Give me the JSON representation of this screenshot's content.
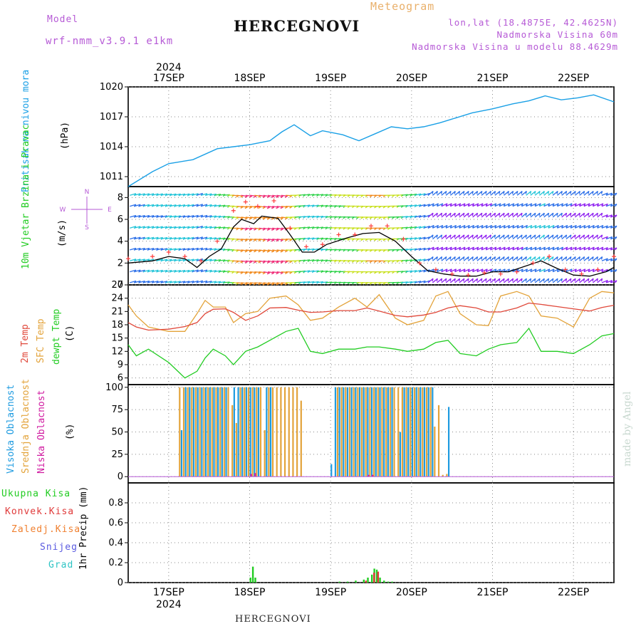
{
  "header": {
    "model_label": "Model",
    "model_name": "wrf-nmm_v3.9.1 e1km",
    "meteogram_label": "Meteogram",
    "station": "HERCEGNOVI",
    "lonlat": "lon,lat (18.4875E, 42.4625N)",
    "elevation": "Nadmorska Visina 60m",
    "model_elevation": "Nadmorska Visina u modelu 88.4629m",
    "footer_station": "HERCEGNOVI",
    "credit": "made by Angel"
  },
  "colors": {
    "pressure": "#1aa0e6",
    "wind_speed": "#000000",
    "gust": "#ff3b3b",
    "temp2m": "#e0483a",
    "sfc_temp": "#e3a33a",
    "dewpt": "#22cc22",
    "high_cloud": "#1e9be0",
    "mid_cloud": "#e3a33a",
    "low_cloud": "#d01aa0",
    "total_precip": "#22cc22",
    "conv_precip": "#e03a3a",
    "frozen_precip": "#f08030",
    "snow": "#5a5ae0",
    "hail": "#2ec4c4"
  },
  "time_axis": {
    "year_label": "2024",
    "day_labels": [
      "17SEP",
      "18SEP",
      "19SEP",
      "20SEP",
      "21SEP",
      "22SEP"
    ]
  },
  "chart_data": [
    {
      "type": "line",
      "panel": "pressure",
      "ylabel": "Pritisak na nivou mora",
      "unit_label": "(hPa)",
      "ylim": [
        1010,
        1020
      ],
      "yticks": [
        "1011",
        "1014",
        "1017",
        "1020"
      ],
      "x_days": [
        16.5,
        16.8,
        17.0,
        17.3,
        17.6,
        17.8,
        18.0,
        18.25,
        18.4,
        18.55,
        18.75,
        18.9,
        19.15,
        19.35,
        19.55,
        19.75,
        19.95,
        20.15,
        20.35,
        20.55,
        20.75,
        21.0,
        21.25,
        21.45,
        21.65,
        21.85,
        22.05,
        22.25,
        22.5
      ],
      "values": [
        1010.0,
        1011.5,
        1012.3,
        1012.7,
        1013.8,
        1014.0,
        1014.2,
        1014.6,
        1015.5,
        1016.2,
        1015.1,
        1015.6,
        1015.2,
        1014.6,
        1015.3,
        1016.0,
        1015.8,
        1016.0,
        1016.4,
        1016.9,
        1017.4,
        1017.8,
        1018.3,
        1018.6,
        1019.1,
        1018.7,
        1018.9,
        1019.2,
        1018.5
      ],
      "grid": true
    },
    {
      "type": "line",
      "panel": "wind",
      "ylabel": "10m Vjetar Brzina i Pravac",
      "unit_label": "(m/s)",
      "ylim": [
        0,
        9
      ],
      "yticks": [
        "0",
        "2",
        "4",
        "6",
        "8"
      ],
      "compass": [
        "N",
        "W",
        "E",
        "S"
      ],
      "series": [
        {
          "role": "wind_speed",
          "x": [
            16.5,
            16.8,
            17.0,
            17.2,
            17.35,
            17.5,
            17.65,
            17.8,
            17.9,
            18.05,
            18.15,
            18.35,
            18.5,
            18.65,
            18.8,
            18.95,
            19.2,
            19.4,
            19.6,
            19.8,
            20.0,
            20.2,
            20.4,
            20.6,
            20.8,
            21.0,
            21.2,
            21.4,
            21.6,
            21.8,
            22.0,
            22.2,
            22.4,
            22.5
          ],
          "values": [
            2.0,
            2.2,
            2.6,
            2.4,
            1.6,
            2.6,
            3.3,
            5.3,
            6.0,
            5.6,
            6.3,
            6.1,
            4.6,
            3.0,
            3.0,
            3.7,
            4.3,
            4.7,
            4.8,
            4.0,
            2.6,
            1.3,
            1.0,
            0.8,
            0.8,
            1.2,
            1.2,
            1.7,
            2.2,
            1.5,
            0.9,
            0.8,
            1.2,
            1.6
          ]
        },
        {
          "role": "gust",
          "x": [
            16.5,
            16.8,
            17.0,
            17.2,
            17.4,
            17.6,
            17.8,
            17.95,
            18.1,
            18.3,
            18.5,
            18.7,
            18.9,
            19.1,
            19.3,
            19.5,
            19.7,
            19.9,
            20.1,
            20.3,
            20.5,
            20.7,
            20.9,
            21.1,
            21.3,
            21.5,
            21.7,
            21.9,
            22.1,
            22.3,
            22.5
          ],
          "values": [
            2.4,
            2.6,
            3.0,
            2.6,
            2.2,
            4.0,
            6.8,
            7.6,
            7.2,
            7.7,
            5.2,
            3.5,
            3.7,
            4.6,
            4.6,
            5.4,
            5.4,
            4.2,
            2.0,
            1.4,
            1.0,
            0.9,
            1.1,
            1.0,
            1.2,
            2.0,
            2.6,
            1.4,
            1.0,
            1.4,
            2.6
          ]
        }
      ],
      "grid": true
    },
    {
      "type": "line",
      "panel": "temperature",
      "ylabel_parts": [
        "2m Temp",
        "SFC Temp",
        "dewpt Temp"
      ],
      "unit_label": "(C)",
      "ylim": [
        4.5,
        27
      ],
      "yticks": [
        "6",
        "9",
        "12",
        "15",
        "18",
        "21",
        "24",
        "27"
      ],
      "x_days": [
        16.5,
        16.6,
        16.75,
        17.0,
        17.2,
        17.35,
        17.45,
        17.55,
        17.7,
        17.8,
        17.95,
        18.1,
        18.25,
        18.45,
        18.6,
        18.75,
        18.9,
        19.1,
        19.3,
        19.45,
        19.6,
        19.8,
        19.95,
        20.15,
        20.3,
        20.45,
        20.6,
        20.8,
        20.95,
        21.1,
        21.3,
        21.45,
        21.6,
        21.8,
        22.0,
        22.2,
        22.35,
        22.5
      ],
      "series": [
        {
          "role": "temp2m",
          "values": [
            18.5,
            17.5,
            16.8,
            17.0,
            17.6,
            18.5,
            20.5,
            21.5,
            21.6,
            20.8,
            19.0,
            20.0,
            21.8,
            21.9,
            21.3,
            20.8,
            20.9,
            21.2,
            21.2,
            21.8,
            21.1,
            20.1,
            19.8,
            20.2,
            20.8,
            21.8,
            22.3,
            21.8,
            20.9,
            20.9,
            21.8,
            22.9,
            22.6,
            22.1,
            21.6,
            21.1,
            21.9,
            22.4
          ]
        },
        {
          "role": "sfc_temp",
          "values": [
            22.5,
            20.0,
            17.5,
            16.5,
            16.5,
            20.5,
            23.5,
            22.0,
            22.0,
            18.5,
            20.5,
            21.0,
            24.0,
            24.5,
            22.5,
            19.0,
            19.5,
            22.0,
            24.0,
            22.0,
            24.8,
            19.5,
            18.0,
            19.0,
            24.5,
            25.5,
            20.5,
            18.0,
            17.8,
            24.5,
            25.5,
            24.5,
            20.0,
            19.5,
            17.5,
            24.0,
            25.5,
            25.2
          ]
        },
        {
          "role": "dewpt",
          "values": [
            13.5,
            11.0,
            12.5,
            9.5,
            6.0,
            7.5,
            10.5,
            12.5,
            11.0,
            9.0,
            12.0,
            13.0,
            14.5,
            16.5,
            17.2,
            12.0,
            11.5,
            12.5,
            12.5,
            13.0,
            13.0,
            12.5,
            12.0,
            12.5,
            14.0,
            14.5,
            11.5,
            11.0,
            12.5,
            13.5,
            14.0,
            17.2,
            12.0,
            12.0,
            11.5,
            13.5,
            15.5,
            16.0
          ]
        }
      ],
      "grid": true
    },
    {
      "type": "bar",
      "panel": "clouds",
      "ylabel_parts": [
        "Visoka Oblacnost",
        "Srednja Oblacnost",
        "Niska Oblacnost"
      ],
      "unit_label": "(%)",
      "ylim": [
        -7,
        103
      ],
      "yticks": [
        "0",
        "25",
        "50",
        "75",
        "100"
      ],
      "series": [
        {
          "role": "high_cloud",
          "x_days": [
            17.15,
            17.2,
            17.25,
            17.3,
            17.35,
            17.4,
            17.45,
            17.5,
            17.55,
            17.6,
            17.65,
            17.7,
            17.8,
            17.85,
            17.9,
            17.95,
            18.0,
            18.05,
            18.1,
            18.2,
            18.25,
            19.0,
            19.05,
            19.1,
            19.15,
            19.2,
            19.25,
            19.3,
            19.35,
            19.4,
            19.45,
            19.5,
            19.55,
            19.6,
            19.65,
            19.7,
            19.75,
            19.85,
            19.9,
            19.95,
            20.0,
            20.05,
            20.1,
            20.15,
            20.2,
            20.25,
            20.45
          ],
          "values": [
            52,
            100,
            100,
            100,
            100,
            100,
            100,
            100,
            100,
            100,
            100,
            100,
            100,
            100,
            100,
            100,
            100,
            100,
            100,
            100,
            100,
            14,
            100,
            100,
            100,
            100,
            100,
            100,
            100,
            100,
            100,
            100,
            100,
            100,
            100,
            100,
            100,
            50,
            100,
            100,
            100,
            100,
            100,
            100,
            100,
            100,
            78
          ]
        },
        {
          "role": "mid_cloud",
          "x_days": [
            17.1,
            17.15,
            17.2,
            17.25,
            17.3,
            17.35,
            17.4,
            17.45,
            17.5,
            17.55,
            17.6,
            17.65,
            17.7,
            17.75,
            17.8,
            17.85,
            17.9,
            17.95,
            18.0,
            18.05,
            18.1,
            18.15,
            18.2,
            18.25,
            18.3,
            18.35,
            18.4,
            18.45,
            18.5,
            18.55,
            18.6,
            19.05,
            19.1,
            19.15,
            19.2,
            19.25,
            19.3,
            19.35,
            19.4,
            19.45,
            19.5,
            19.55,
            19.6,
            19.65,
            19.7,
            19.75,
            19.8,
            19.85,
            19.9,
            19.95,
            20.0,
            20.05,
            20.1,
            20.15,
            20.2,
            20.25,
            20.3,
            20.35,
            20.4
          ],
          "values": [
            100,
            100,
            100,
            100,
            100,
            100,
            100,
            100,
            100,
            100,
            100,
            100,
            100,
            80,
            60,
            100,
            100,
            100,
            100,
            100,
            100,
            52,
            100,
            100,
            100,
            100,
            100,
            100,
            100,
            100,
            85,
            100,
            100,
            100,
            100,
            100,
            100,
            100,
            100,
            100,
            100,
            100,
            100,
            100,
            100,
            100,
            100,
            100,
            100,
            100,
            100,
            100,
            100,
            100,
            100,
            56,
            80,
            2,
            3
          ]
        },
        {
          "role": "low_cloud",
          "x_days": [
            18.0,
            18.05,
            19.45,
            19.5
          ],
          "values": [
            3,
            4,
            2,
            2
          ]
        }
      ],
      "grid": true
    },
    {
      "type": "bar",
      "panel": "precipitation",
      "legend": [
        "Ukupna Kisa",
        "Konvek.Kisa",
        "Zaledj.Kisa",
        "Snijeg",
        "Grad"
      ],
      "ylabel": "1hr Precip (mm)",
      "ylim": [
        0,
        1.0
      ],
      "yticks": [
        "0",
        "0.2",
        "0.4",
        "0.6",
        "0.8"
      ],
      "series": [
        {
          "role": "total_precip",
          "x_days": [
            18.0,
            18.03,
            18.06,
            19.1,
            19.2,
            19.3,
            19.4,
            19.45,
            19.5,
            19.53,
            19.56,
            19.6,
            19.65,
            19.7,
            19.75
          ],
          "values": [
            0.05,
            0.16,
            0.05,
            0.01,
            0.01,
            0.02,
            0.03,
            0.05,
            0.08,
            0.14,
            0.13,
            0.05,
            0.02,
            0.01,
            0.01
          ]
        },
        {
          "role": "conv_precip",
          "x_days": [
            19.4,
            19.5,
            19.55
          ],
          "values": [
            0.02,
            0.1,
            0.11
          ]
        }
      ],
      "grid": true
    }
  ]
}
